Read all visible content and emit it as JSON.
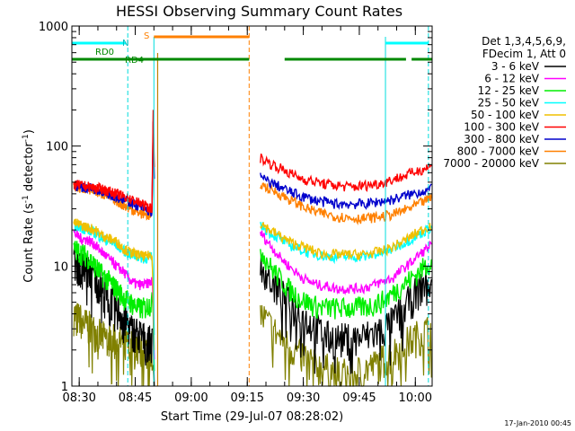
{
  "chart_data": {
    "type": "line",
    "title": "HESSI Observing Summary Count Rates",
    "xlabel": "Start Time (29-Jul-07 08:28:02)",
    "ylabel_main": "Count Rate (s",
    "ylabel_sup1": "-1",
    "ylabel_mid": " detector",
    "ylabel_sup2": "-1",
    "ylabel_end": ")",
    "date_stamp": "17-Jan-2010 00:45",
    "x_range": [
      "08:28:02",
      "10:04:30"
    ],
    "y_scale": "log",
    "y_range": [
      1,
      1000
    ],
    "x_ticks": [
      "08:30",
      "08:45",
      "09:00",
      "09:15",
      "09:30",
      "09:45",
      "10:00"
    ],
    "y_ticks": [
      "1",
      "10",
      "100",
      "1000"
    ],
    "legend": {
      "header1": "Det 1,3,4,5,6,9,",
      "header2": "FDecim 1, Att 0",
      "placement": "right"
    },
    "annotations": {
      "N": "N",
      "S": "S",
      "RD0": "RD0",
      "RD4": "RD4"
    },
    "flag_bars": {
      "N": [
        [
          "08:28:02",
          "08:42:30"
        ],
        [
          "09:52:00",
          "10:03:30"
        ]
      ],
      "S": [
        "08:50:00",
        "09:15:30"
      ],
      "RD0": [
        [
          "08:28:02",
          "09:15:30"
        ],
        [
          "09:25:00",
          "09:57:30"
        ],
        [
          "09:59:00",
          "10:04:30"
        ]
      ]
    },
    "markers": {
      "cyan_dashed": [
        "08:43:00",
        "10:03:30"
      ],
      "cyan_solid": [
        "08:50:00",
        "09:52:00"
      ],
      "orange_dashed": [
        "09:15:30"
      ],
      "gold_solid": [
        "08:51:00"
      ]
    },
    "series": [
      {
        "name": "3 - 6 keV",
        "color": "#000000",
        "before": [
          11,
          10,
          9.5,
          8,
          6.5,
          5.5,
          4.5,
          3.8,
          3,
          2.8,
          2.5,
          2.3
        ],
        "after": [
          11,
          8,
          6,
          5,
          4.2,
          3.5,
          3,
          2.6,
          2.5,
          2.5,
          2.5,
          2.6,
          2.8,
          3,
          3.5,
          4.5,
          5.5,
          7,
          8
        ]
      },
      {
        "name": "6 - 12 keV",
        "color": "#ff00ff",
        "before": [
          19,
          17,
          16.5,
          15,
          13,
          11.5,
          10,
          9,
          7.5,
          7,
          7,
          7.5
        ],
        "after": [
          19,
          15,
          12,
          10,
          8.5,
          7.5,
          7,
          6.8,
          6.5,
          6.5,
          6.5,
          6.6,
          7,
          7.5,
          8,
          9.5,
          11,
          13,
          15
        ]
      },
      {
        "name": "12 - 25 keV",
        "color": "#00ee00",
        "before": [
          14,
          13,
          12,
          10,
          8.5,
          7.5,
          6.5,
          5.5,
          5,
          4.5,
          4.5,
          5
        ],
        "after": [
          14,
          10,
          8,
          6.5,
          5.5,
          5,
          4.6,
          4.5,
          4.5,
          4.5,
          4.5,
          4.6,
          4.8,
          5.2,
          6,
          7,
          8,
          9.5,
          11
        ]
      },
      {
        "name": "25 - 50 keV",
        "color": "#00ffff",
        "before": [
          22,
          21,
          20,
          19,
          17,
          16,
          15,
          13.5,
          12.5,
          12,
          11.5,
          12
        ],
        "after": [
          22,
          19,
          17,
          15,
          14,
          13,
          12.5,
          12,
          12,
          12,
          12,
          12,
          12.5,
          13,
          14,
          15.5,
          17,
          19,
          21
        ]
      },
      {
        "name": "50 - 100 keV",
        "color": "#f0c000",
        "before": [
          23,
          22,
          21,
          20,
          18,
          17,
          16,
          14,
          13,
          12.5,
          12,
          12.5
        ],
        "after": [
          23,
          20,
          18,
          16,
          15,
          14,
          13,
          12.5,
          12.5,
          12.5,
          12.5,
          12.5,
          13,
          13.5,
          14.5,
          16,
          18,
          20,
          22
        ]
      },
      {
        "name": "100 - 300 keV",
        "color": "#ff0000",
        "before": [
          48,
          47,
          46,
          45,
          44,
          42,
          40,
          38,
          36,
          34,
          32,
          30
        ],
        "after": [
          80,
          72,
          66,
          60,
          55,
          52,
          50,
          48,
          47,
          46,
          46,
          47,
          48,
          50,
          53,
          56,
          60,
          64,
          68
        ]
      },
      {
        "name": "300 - 800 keV",
        "color": "#0000cc",
        "before": [
          47,
          46,
          45,
          44,
          42,
          40,
          38,
          36,
          34,
          32,
          30,
          28
        ],
        "after": [
          55,
          50,
          46,
          42,
          39,
          37,
          35,
          34,
          33,
          33,
          33,
          33,
          34,
          35,
          36,
          38,
          40,
          42,
          44
        ]
      },
      {
        "name": "800 - 7000 keV",
        "color": "#ff8000",
        "before": [
          46,
          45,
          44,
          42,
          40,
          38,
          35,
          32,
          30,
          28,
          27,
          26
        ],
        "after": [
          48,
          44,
          40,
          36,
          33,
          30,
          28,
          27,
          26,
          25.5,
          25,
          25,
          25.5,
          26,
          27,
          29,
          31,
          34,
          37
        ]
      },
      {
        "name": "7000 - 20000 keV",
        "color": "#808000",
        "before": [
          4,
          3.6,
          3.2,
          2.9,
          2.6,
          2.5,
          2.4,
          2.3,
          2.2,
          2.1,
          2,
          2
        ],
        "after": [
          4,
          3.2,
          2.6,
          2.2,
          1.9,
          1.7,
          1.5,
          1.4,
          1.3,
          1.3,
          1.3,
          1.4,
          1.5,
          1.7,
          1.9,
          2.2,
          2.5,
          2.8,
          3
        ]
      }
    ]
  }
}
